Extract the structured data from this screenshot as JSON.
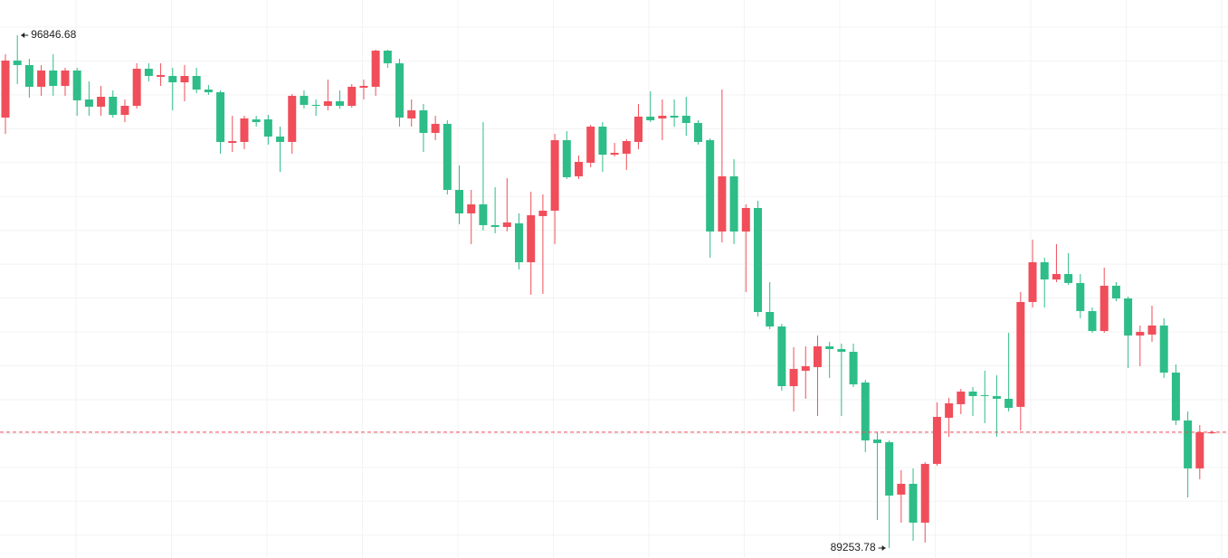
{
  "chart_data": {
    "type": "candlestick",
    "up_color": "#f04e5a",
    "down_color": "#2ebd88",
    "open": [
      95628,
      96472,
      96405,
      96084,
      96325,
      96097,
      96325,
      95896,
      95789,
      95936,
      95668,
      95802,
      96351,
      96231,
      96244,
      96150,
      96244,
      96043,
      96003,
      95253,
      95267,
      95601,
      95601,
      95347,
      95267,
      95950,
      95816,
      95802,
      95869,
      95802,
      96070,
      96084,
      96619,
      96432,
      95615,
      95735,
      95401,
      95535,
      94557,
      94209,
      94343,
      94035,
      94008,
      94062,
      93486,
      94169,
      94249,
      95293,
      94758,
      94959,
      95494,
      95079,
      95093,
      95267,
      95642,
      95615,
      95655,
      95655,
      95548,
      95293,
      93941,
      94758,
      93941,
      94289,
      92749,
      92535,
      91651,
      91879,
      91933,
      92241,
      92200,
      92160,
      91705,
      90861,
      90821,
      90045,
      90205,
      89630,
      90500,
      91183,
      91384,
      91571,
      91518,
      91504,
      91464,
      91344,
      92897,
      93486,
      93231,
      93312,
      93178,
      92763,
      92468,
      93138,
      92950,
      92401,
      92415,
      92549,
      91852,
      91143,
      90433,
      90955
    ],
    "high": [
      96566,
      96846.68,
      96499,
      96405,
      96566,
      96365,
      96365,
      96164,
      96097,
      96030,
      95896,
      96432,
      96432,
      96432,
      96365,
      96405,
      96365,
      96110,
      96030,
      95655,
      95655,
      95655,
      95668,
      95494,
      95976,
      96030,
      95896,
      96191,
      96030,
      96124,
      96191,
      96633,
      96633,
      96499,
      95896,
      95829,
      95655,
      95588,
      94919,
      94557,
      95561,
      94597,
      94731,
      94209,
      94530,
      94490,
      95387,
      95427,
      95066,
      95521,
      95561,
      95253,
      95307,
      95829,
      96017,
      95896,
      95896,
      95936,
      95588,
      95320,
      96043,
      95012,
      94343,
      94396,
      93191,
      92575,
      92227,
      92241,
      92401,
      92308,
      92281,
      92281,
      91745,
      90969,
      90848,
      90406,
      90433,
      90527,
      91410,
      91477,
      91611,
      91638,
      91879,
      91812,
      92441,
      93044,
      93821,
      93553,
      93754,
      93620,
      93312,
      92816,
      93406,
      93191,
      92977,
      92549,
      92843,
      92656,
      91973,
      91277,
      91076,
      90995
    ],
    "low": [
      95387,
      96124,
      95923,
      95950,
      95950,
      95950,
      95655,
      95655,
      95655,
      95628,
      95561,
      95762,
      96164,
      96097,
      95735,
      95869,
      95990,
      95963,
      95093,
      95119,
      95160,
      95494,
      95227,
      94825,
      95093,
      95762,
      95655,
      95735,
      95762,
      95776,
      95896,
      95950,
      96365,
      95494,
      95494,
      95119,
      95293,
      94490,
      94048,
      93754,
      93955,
      93914,
      93941,
      93379,
      93004,
      93017,
      93754,
      94718,
      94718,
      94892,
      94825,
      95052,
      94852,
      95160,
      95561,
      95293,
      95494,
      95360,
      95227,
      93553,
      93780,
      93754,
      93044,
      92682,
      92495,
      91584,
      91277,
      91464,
      91210,
      91772,
      91210,
      91638,
      90674,
      89670,
      89253.78,
      89630,
      89362,
      89335,
      90473,
      90902,
      91236,
      91210,
      91102,
      90902,
      91277,
      90995,
      92816,
      92816,
      93191,
      93151,
      92656,
      92441,
      92441,
      92910,
      91919,
      91946,
      92308,
      91772,
      91076,
      90005,
      90272,
      90942
    ],
    "close": [
      96472,
      96405,
      96084,
      96325,
      96097,
      96325,
      95883,
      95789,
      95936,
      95668,
      95802,
      96351,
      96244,
      96258,
      96150,
      96244,
      96043,
      96003,
      95267,
      95280,
      95615,
      95561,
      95347,
      95267,
      95950,
      95816,
      95802,
      95869,
      95802,
      96084,
      96097,
      96619,
      96432,
      95628,
      95735,
      95401,
      95535,
      94557,
      94209,
      94343,
      94035,
      94008,
      94075,
      93486,
      94182,
      94249,
      95293,
      94745,
      94972,
      95494,
      95079,
      95106,
      95280,
      95642,
      95588,
      95655,
      95628,
      95548,
      95267,
      93941,
      94758,
      93941,
      94289,
      92749,
      92535,
      91651,
      91906,
      91946,
      92241,
      92200,
      92160,
      91678,
      90848,
      90808,
      90031,
      90205,
      89630,
      90500,
      91196,
      91397,
      91571,
      91504,
      91504,
      91464,
      91330,
      92897,
      93486,
      93231,
      93312,
      93178,
      92763,
      92468,
      93138,
      92950,
      92401,
      92455,
      92549,
      91852,
      91143,
      90433,
      90969,
      90969
    ]
  }
}
